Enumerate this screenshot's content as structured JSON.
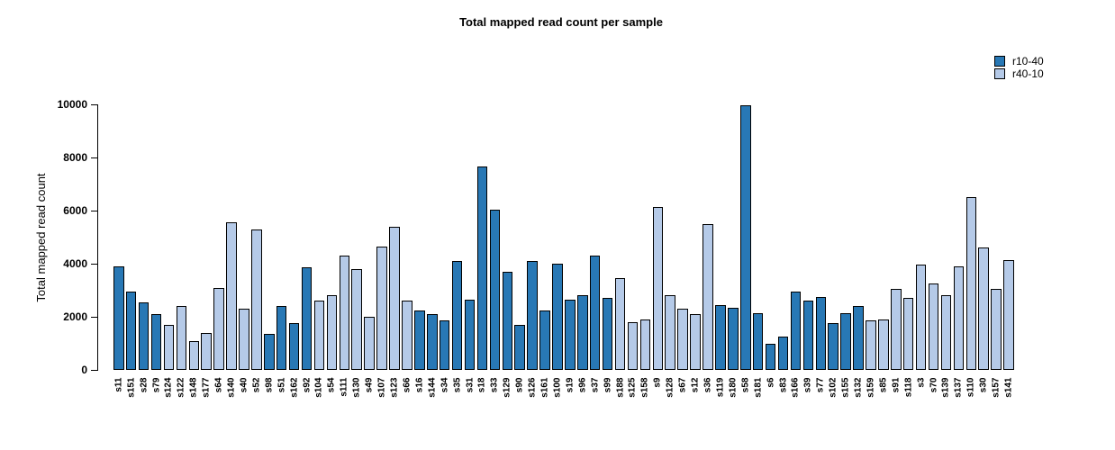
{
  "title": "Total mapped read count per sample",
  "legend": {
    "items": [
      {
        "label": "r10-40",
        "color": "#2878b5"
      },
      {
        "label": "r40-10",
        "color": "#b5cae8"
      }
    ]
  },
  "chart_data": {
    "type": "bar",
    "title": "Total mapped read count per sample",
    "xlabel": "",
    "ylabel": "Total mapped read count",
    "ylim": [
      0,
      10000
    ],
    "yticks": [
      0,
      2000,
      4000,
      6000,
      8000,
      10000
    ],
    "grid": false,
    "legend_position": "top-right",
    "bar_border_color": "#000000",
    "categories": [
      "s11",
      "s151",
      "s28",
      "s79",
      "s124",
      "s122",
      "s148",
      "s177",
      "s64",
      "s140",
      "s40",
      "s52",
      "s98",
      "s51",
      "s162",
      "s92",
      "s104",
      "s54",
      "s111",
      "s130",
      "s49",
      "s107",
      "s123",
      "s66",
      "s16",
      "s144",
      "s34",
      "s35",
      "s31",
      "s18",
      "s33",
      "s129",
      "s90",
      "s126",
      "s161",
      "s100",
      "s19",
      "s96",
      "s37",
      "s99",
      "s188",
      "s125",
      "s158",
      "s9",
      "s128",
      "s67",
      "s12",
      "s36",
      "s119",
      "s180",
      "s58",
      "s181",
      "s6",
      "s83",
      "s166",
      "s39",
      "s77",
      "s102",
      "s155",
      "s132",
      "s159",
      "s85",
      "s91",
      "s118",
      "s3",
      "s70",
      "s139",
      "s137",
      "s110",
      "s30",
      "s157",
      "s141"
    ],
    "values": [
      3900,
      2950,
      2550,
      2100,
      1700,
      2400,
      1100,
      1400,
      3100,
      5550,
      2300,
      5300,
      1350,
      2400,
      1750,
      3850,
      2600,
      2800,
      4300,
      3800,
      2000,
      4650,
      5400,
      2600,
      2250,
      2100,
      1850,
      4100,
      2650,
      7650,
      6050,
      3700,
      1700,
      4100,
      2250,
      4000,
      2650,
      2800,
      4300,
      2700,
      3450,
      1800,
      1900,
      6150,
      2800,
      2300,
      2100,
      5500,
      2450,
      2350,
      9950,
      2150,
      1000,
      1250,
      2950,
      2600,
      2750,
      1750,
      2150,
      2400,
      1850,
      1900,
      3050,
      2700,
      3950,
      3250,
      2800,
      3900,
      6500,
      4600,
      3050,
      4150
    ],
    "groups": [
      "r10-40",
      "r10-40",
      "r10-40",
      "r10-40",
      "r40-10",
      "r40-10",
      "r40-10",
      "r40-10",
      "r40-10",
      "r40-10",
      "r40-10",
      "r40-10",
      "r10-40",
      "r10-40",
      "r10-40",
      "r10-40",
      "r40-10",
      "r40-10",
      "r40-10",
      "r40-10",
      "r40-10",
      "r40-10",
      "r40-10",
      "r40-10",
      "r10-40",
      "r10-40",
      "r10-40",
      "r10-40",
      "r10-40",
      "r10-40",
      "r10-40",
      "r10-40",
      "r10-40",
      "r10-40",
      "r10-40",
      "r10-40",
      "r10-40",
      "r10-40",
      "r10-40",
      "r10-40",
      "r40-10",
      "r40-10",
      "r40-10",
      "r40-10",
      "r40-10",
      "r40-10",
      "r40-10",
      "r40-10",
      "r10-40",
      "r10-40",
      "r10-40",
      "r10-40",
      "r10-40",
      "r10-40",
      "r10-40",
      "r10-40",
      "r10-40",
      "r10-40",
      "r10-40",
      "r10-40",
      "r40-10",
      "r40-10",
      "r40-10",
      "r40-10",
      "r40-10",
      "r40-10",
      "r40-10",
      "r40-10",
      "r40-10",
      "r40-10",
      "r40-10",
      "r40-10"
    ],
    "series": [
      {
        "name": "r10-40",
        "color": "#2878b5"
      },
      {
        "name": "r40-10",
        "color": "#b5cae8"
      }
    ]
  }
}
